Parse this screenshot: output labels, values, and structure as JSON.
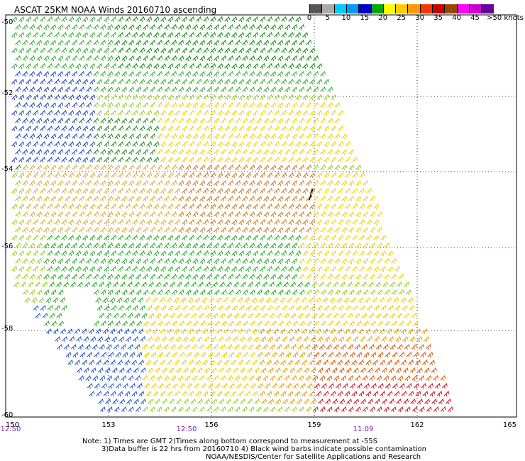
{
  "title": "ASCAT 25KM NOAA Winds 20160710 ascending",
  "legend": {
    "colors": [
      "#555555",
      "#aaaaaa",
      "#00ccff",
      "#0099ff",
      "#0000cc",
      "#00aa00",
      "#ffff00",
      "#ffcc00",
      "#ff9900",
      "#ff3300",
      "#cc0000",
      "#994400",
      "#ff00ff",
      "#cc00cc",
      "#660099"
    ],
    "ticks": [
      "0",
      "5",
      "10",
      "15",
      "20",
      "25",
      "30",
      "35",
      "40",
      "45",
      ">50 knots"
    ]
  },
  "map": {
    "lat_labels": [
      "-50",
      "-52",
      "-54",
      "-56",
      "-58",
      "-60"
    ],
    "lon_labels": [
      "150",
      "153",
      "156",
      "159",
      "162",
      "165"
    ],
    "time_labels": [
      "12:50",
      "12:50",
      "11:09"
    ]
  },
  "notes": {
    "line1": "Note: 1) Times are GMT 2)Times along bottom correspond to measurement at -55S",
    "line2": "3)Data buffer is 22 hrs from 20160710 4) Black wind barbs indicate possible contamination",
    "line3": "NOAA/NESDIS/Center for Satellite Applications and Research"
  }
}
